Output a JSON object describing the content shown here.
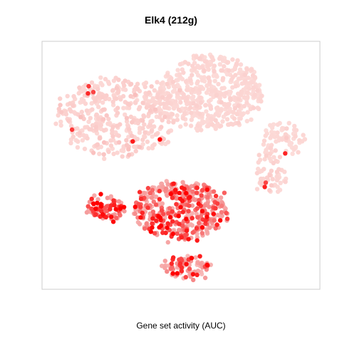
{
  "chart_data": {
    "type": "scatter",
    "title": "Elk4 (212g)",
    "xlabel": "Gene set activity (AUC)",
    "ylabel": "",
    "grid": false,
    "color_scale": {
      "low": "#fde0dd",
      "mid": "#f59a9a",
      "high": "#ff0000"
    },
    "axis_ranges": {
      "x": [
        0,
        1
      ],
      "y": [
        0,
        1
      ]
    },
    "clusters": [
      {
        "id": "top-right",
        "cx": 0.6,
        "cy": 0.79,
        "rx": 0.19,
        "ry": 0.15,
        "n": 520,
        "activity": 0.03
      },
      {
        "id": "top-left",
        "cx": 0.27,
        "cy": 0.69,
        "rx": 0.22,
        "ry": 0.16,
        "n": 420,
        "activity": 0.05
      },
      {
        "id": "right-arm",
        "cx": 0.87,
        "cy": 0.6,
        "rx": 0.08,
        "ry": 0.06,
        "n": 70,
        "activity": 0.03
      },
      {
        "id": "bridge",
        "cx": 0.82,
        "cy": 0.47,
        "rx": 0.06,
        "ry": 0.09,
        "n": 60,
        "activity": 0.04
      },
      {
        "id": "middle",
        "cx": 0.5,
        "cy": 0.32,
        "rx": 0.17,
        "ry": 0.12,
        "n": 420,
        "activity": 0.28
      },
      {
        "id": "left-small",
        "cx": 0.23,
        "cy": 0.33,
        "rx": 0.07,
        "ry": 0.05,
        "n": 80,
        "activity": 0.35
      },
      {
        "id": "bottom",
        "cx": 0.52,
        "cy": 0.09,
        "rx": 0.09,
        "ry": 0.05,
        "n": 90,
        "activity": 0.25
      }
    ]
  }
}
